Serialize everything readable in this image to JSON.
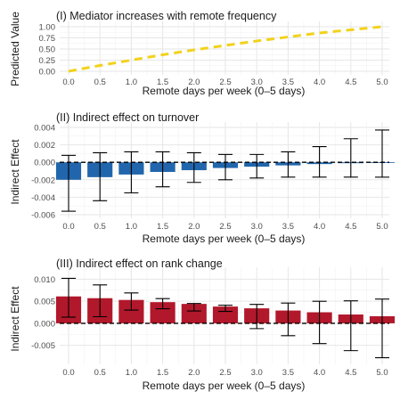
{
  "chart_data": [
    {
      "type": "line",
      "title": "(I) Mediator increases with remote frequency",
      "xlabel": "Remote days per week (0–5 days)",
      "ylabel": "Predicted Value",
      "color": "#f2d21b",
      "line_style": "dashed",
      "grid": true,
      "xlim": [
        0,
        5
      ],
      "ylim": [
        0,
        1
      ],
      "x_ticks": [
        "0.0",
        "0.5",
        "1.0",
        "1.5",
        "2.0",
        "2.5",
        "3.0",
        "3.5",
        "4.0",
        "4.5",
        "5.0"
      ],
      "y_ticks": [
        "0.00",
        "0.25",
        "0.50",
        "0.75",
        "1.00"
      ],
      "x": [
        0.0,
        0.5,
        1.0,
        1.5,
        2.0,
        2.5,
        3.0,
        3.5,
        4.0,
        4.5,
        5.0
      ],
      "y": [
        0.0,
        0.13,
        0.25,
        0.37,
        0.48,
        0.58,
        0.68,
        0.77,
        0.86,
        0.93,
        1.0
      ]
    },
    {
      "type": "bar",
      "title": "(II) Indirect effect on turnover",
      "xlabel": "Remote days per week (0–5 days)",
      "ylabel": "Indirect Effect",
      "color": "#2166ac",
      "error_bars": true,
      "reference_line": 0,
      "grid": true,
      "ylim": [
        -0.006,
        0.004
      ],
      "categories": [
        "0.0",
        "0.5",
        "1.0",
        "1.5",
        "2.0",
        "2.5",
        "3.0",
        "3.5",
        "4.0",
        "4.5",
        "5.0"
      ],
      "y_ticks": [
        "0.004",
        "0.002",
        "0.000",
        "-0.002",
        "-0.004",
        "-0.006"
      ],
      "values": [
        -0.002,
        -0.0017,
        -0.0014,
        -0.0011,
        -0.0009,
        -0.00065,
        -0.0005,
        -0.00035,
        -0.0002,
        -0.0001,
        0.0
      ],
      "error_low": [
        -0.0056,
        -0.0044,
        -0.0035,
        -0.0028,
        -0.0023,
        -0.002,
        -0.0018,
        -0.0017,
        -0.0017,
        -0.0017,
        -0.0017
      ],
      "error_high": [
        0.0008,
        0.0011,
        0.0012,
        0.0012,
        0.0011,
        0.0009,
        0.0009,
        0.0012,
        0.0018,
        0.0027,
        0.0037
      ]
    },
    {
      "type": "bar",
      "title": "(III) Indirect effect on rank change",
      "xlabel": "Remote days per week (0–5 days)",
      "ylabel": "Indirect Effect",
      "color": "#b2182b",
      "error_bars": true,
      "reference_line": 0,
      "grid": true,
      "ylim": [
        -0.0085,
        0.0115
      ],
      "categories": [
        "0.0",
        "0.5",
        "1.0",
        "1.5",
        "2.0",
        "2.5",
        "3.0",
        "3.5",
        "4.0",
        "4.5",
        "5.0"
      ],
      "y_ticks": [
        "0.010",
        "0.005",
        "0.000",
        "-0.005"
      ],
      "values": [
        0.0061,
        0.0057,
        0.0053,
        0.0048,
        0.0044,
        0.0038,
        0.0034,
        0.0029,
        0.0025,
        0.002,
        0.0016
      ],
      "error_low": [
        0.0014,
        0.0015,
        0.003,
        0.0033,
        0.0028,
        0.0027,
        -0.0012,
        -0.0028,
        -0.0046,
        -0.0062,
        -0.0078
      ],
      "error_high": [
        0.0102,
        0.0087,
        0.0069,
        0.0056,
        0.0045,
        0.0041,
        0.0043,
        0.0046,
        0.005,
        0.0051,
        0.0055
      ]
    }
  ]
}
